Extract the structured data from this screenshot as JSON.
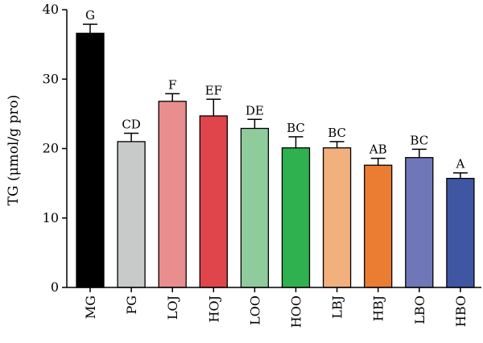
{
  "chart_data": {
    "type": "bar",
    "ylabel": "TG (μmol/g pro)",
    "ylim": [
      0,
      40
    ],
    "yticks": [
      0,
      10,
      20,
      30,
      40
    ],
    "grid": false,
    "categories": [
      "MG",
      "PG",
      "LOJ",
      "HOJ",
      "LOO",
      "HOO",
      "LBJ",
      "HBJ",
      "LBO",
      "HBO"
    ],
    "values": [
      36.6,
      21.0,
      26.8,
      24.7,
      22.9,
      20.1,
      20.1,
      17.6,
      18.7,
      15.7
    ],
    "errors": [
      1.3,
      1.2,
      1.1,
      2.4,
      1.3,
      1.6,
      0.9,
      1.0,
      1.2,
      0.8
    ],
    "significance": [
      "G",
      "CD",
      "F",
      "EF",
      "DE",
      "BC",
      "BC",
      "AB",
      "BC",
      "A"
    ],
    "colors": [
      "#000000",
      "#c8cac9",
      "#e88e8e",
      "#e0454b",
      "#8ecc9b",
      "#2fb14f",
      "#f2b07c",
      "#ea7d32",
      "#7077b9",
      "#3f56a3"
    ]
  }
}
